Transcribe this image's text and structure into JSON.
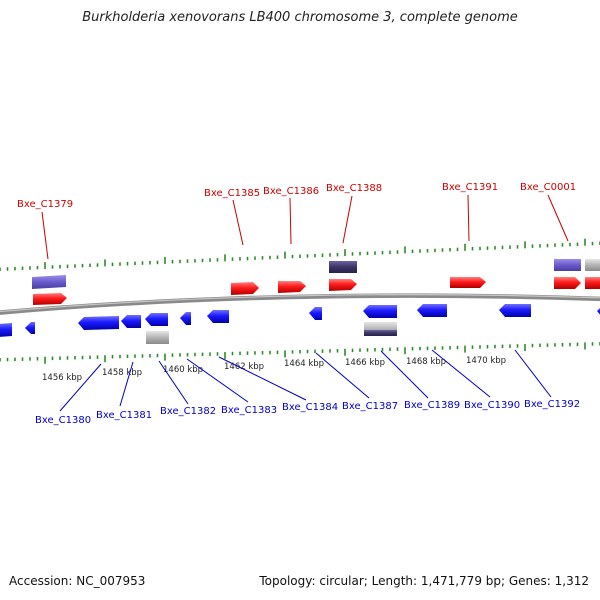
{
  "title": "Burkholderia xenovorans LB400 chromosome 3, complete genome",
  "footer": {
    "accession": "Accession: NC_007953",
    "summary": "Topology: circular; Length: 1,471,779 bp; Genes: 1,312"
  },
  "colors": {
    "backbone": "#909090",
    "tick": "#2e8b2e",
    "forward_gene": "#ff0000",
    "reverse_gene": "#0000ff",
    "upper_label": "#cc0000",
    "lower_label": "#0000cc",
    "feature_purple": "#6a5acd",
    "feature_dark": "#3c3566",
    "feature_gray": "#a8a8a8"
  },
  "scale_labels": [
    "1456 kbp",
    "1458 kbp",
    "1460 kbp",
    "1462 kbp",
    "1464 kbp",
    "1466 kbp",
    "1468 kbp",
    "1470 kbp"
  ],
  "upper_gene_labels": [
    "Bxe_C1379",
    "Bxe_C1385",
    "Bxe_C1386",
    "Bxe_C1388",
    "Bxe_C1391",
    "Bxe_C0001"
  ],
  "lower_gene_labels": [
    "Bxe_C1380",
    "Bxe_C1381",
    "Bxe_C1382",
    "Bxe_C1383",
    "Bxe_C1384",
    "Bxe_C1387",
    "Bxe_C1389",
    "Bxe_C1390",
    "Bxe_C1392"
  ]
}
